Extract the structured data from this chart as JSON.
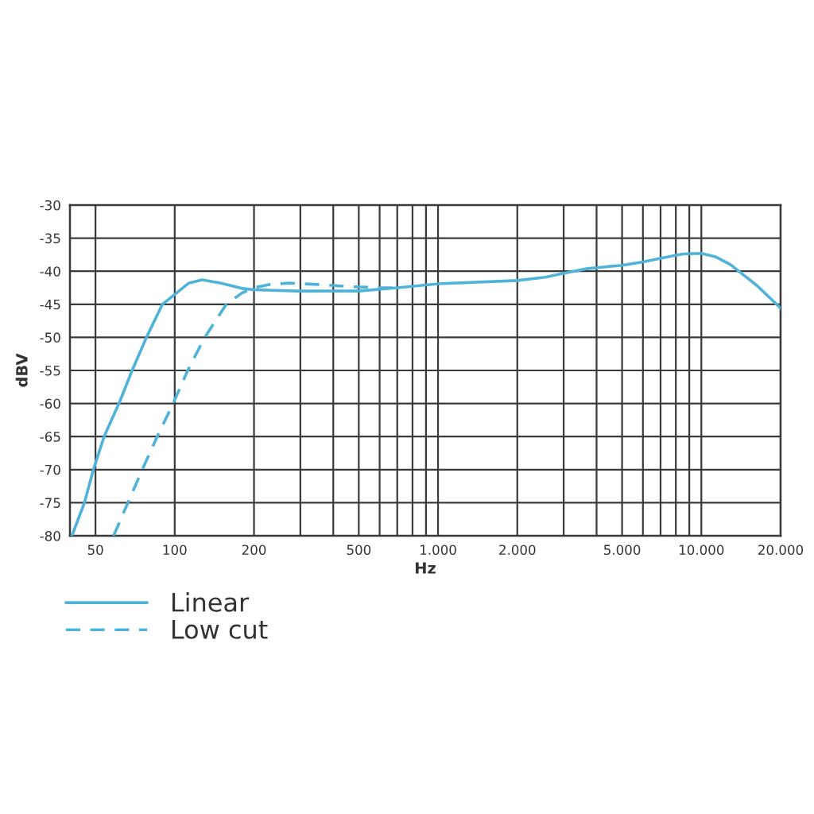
{
  "chart_data": {
    "type": "line",
    "xlabel": "Hz",
    "ylabel": "dBV",
    "log": "x",
    "xlim": [
      40,
      20000
    ],
    "ylim": [
      -80,
      -30
    ],
    "yticks": [
      -80,
      -75,
      -70,
      -65,
      -60,
      -55,
      -50,
      -45,
      -40,
      -35,
      -30
    ],
    "xticks": [
      {
        "value": 50,
        "label": "50"
      },
      {
        "value": 100,
        "label": "100"
      },
      {
        "value": 200,
        "label": "200"
      },
      {
        "value": 300,
        "label": null
      },
      {
        "value": 400,
        "label": null
      },
      {
        "value": 500,
        "label": "500"
      },
      {
        "value": 600,
        "label": null
      },
      {
        "value": 700,
        "label": null
      },
      {
        "value": 800,
        "label": null
      },
      {
        "value": 900,
        "label": null
      },
      {
        "value": 1000,
        "label": "1.000"
      },
      {
        "value": 2000,
        "label": "2.000"
      },
      {
        "value": 3000,
        "label": null
      },
      {
        "value": 4000,
        "label": null
      },
      {
        "value": 5000,
        "label": "5.000"
      },
      {
        "value": 6000,
        "label": null
      },
      {
        "value": 7000,
        "label": null
      },
      {
        "value": 8000,
        "label": null
      },
      {
        "value": 9000,
        "label": null
      },
      {
        "value": 10000,
        "label": "10.000"
      },
      {
        "value": 20000,
        "label": "20.000"
      }
    ],
    "grid": true,
    "legend": "bottom left",
    "series": [
      {
        "name": "Linear",
        "color": "#4fb3d9",
        "line_style": "solid",
        "x": [
          40.7,
          45.4,
          49.1,
          53.9,
          61.4,
          68.9,
          78.1,
          89.8,
          100,
          113,
          127,
          150,
          180,
          200,
          290,
          500,
          700,
          1000,
          2000,
          2550,
          3000,
          3700,
          5000,
          6000,
          7100,
          8500,
          10000,
          11300,
          12900,
          16300,
          20000
        ],
        "values": [
          -80,
          -75,
          -70,
          -65,
          -60,
          -55,
          -50,
          -45,
          -43.5,
          -41.8,
          -41.3,
          -41.8,
          -42.6,
          -42.8,
          -43,
          -43,
          -42.5,
          -41.9,
          -41.4,
          -40.9,
          -40.3,
          -39.6,
          -39.1,
          -38.6,
          -38,
          -37.4,
          -37.3,
          -37.8,
          -39,
          -42.2,
          -45.6
        ]
      },
      {
        "name": "Low cut",
        "color": "#4fb3d9",
        "line_style": "dashed",
        "x": [
          58.6,
          66.4,
          75.3,
          85.8,
          98.6,
          112,
          130,
          157,
          180,
          200,
          230,
          270,
          350,
          450,
          600,
          700
        ],
        "values": [
          -80,
          -75,
          -70,
          -65,
          -60,
          -55,
          -50,
          -45,
          -43.3,
          -42.5,
          -42,
          -41.8,
          -42,
          -42.3,
          -42.5,
          -42.5
        ]
      }
    ]
  }
}
